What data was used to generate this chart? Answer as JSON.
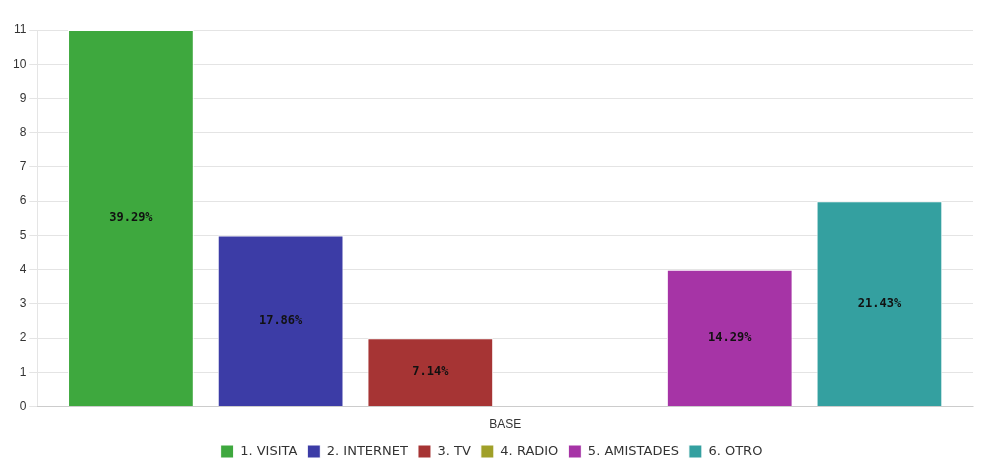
{
  "chart_data": {
    "type": "bar",
    "categories": [
      "BASE"
    ],
    "series": [
      {
        "name": "1. VISITA",
        "color": "#3ea83e",
        "values": [
          11
        ]
      },
      {
        "name": "2. INTERNET",
        "color": "#3c3ca6",
        "values": [
          5
        ]
      },
      {
        "name": "3. TV",
        "color": "#a63434",
        "values": [
          2
        ]
      },
      {
        "name": "4. RADIO",
        "color": "#a0a028",
        "values": [
          0
        ]
      },
      {
        "name": "5. AMISTADES",
        "color": "#a634a6",
        "values": [
          4
        ]
      },
      {
        "name": "6. OTRO",
        "color": "#34a0a0",
        "values": [
          6
        ]
      }
    ],
    "annotations": [
      "39.29%",
      "17.86%",
      "7.14%",
      "14.29%",
      "21.43%"
    ],
    "ylim": [
      0,
      11
    ],
    "yticks": [
      0,
      1,
      2,
      3,
      4,
      5,
      6,
      7,
      8,
      9,
      10,
      11
    ],
    "grid": "y",
    "legend": "bottom"
  }
}
